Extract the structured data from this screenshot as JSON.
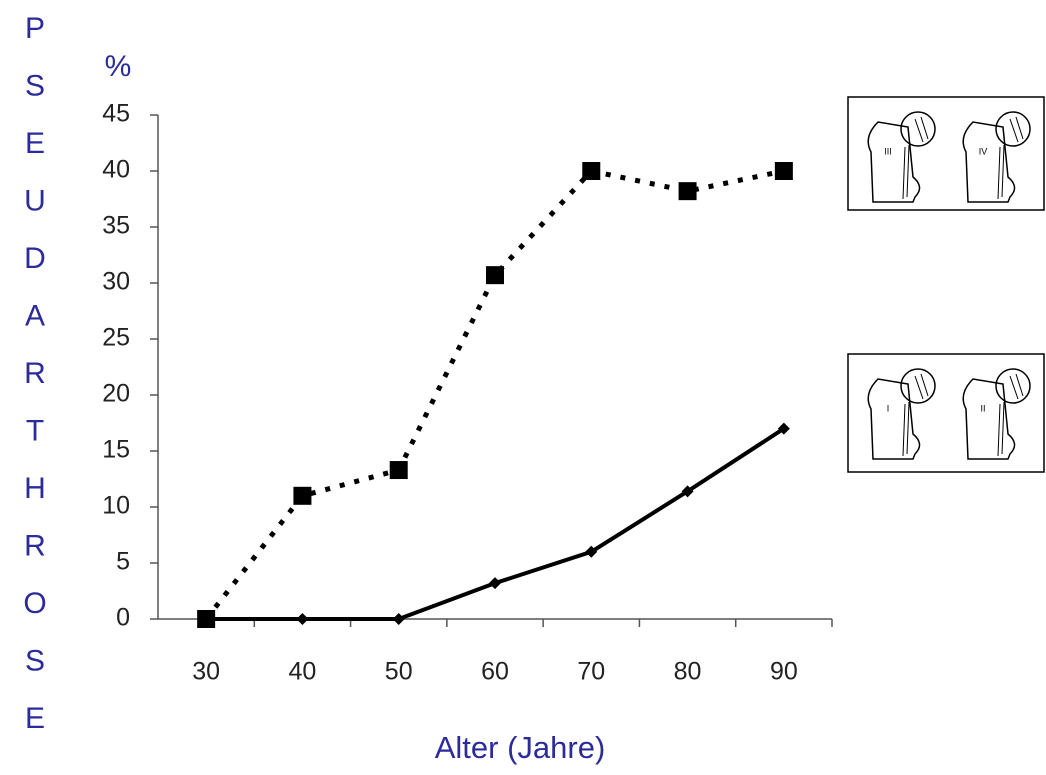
{
  "chart_data": {
    "type": "line",
    "ylabel": "PSEUDARTHROSE",
    "yunit": "%",
    "xlabel": "Alter (Jahre)",
    "categories": [
      "30",
      "40",
      "50",
      "60",
      "70",
      "80",
      "90"
    ],
    "series": [
      {
        "color": "#000000",
        "marker": "square",
        "dash": true,
        "legend_labels": [
          "III",
          "IV"
        ],
        "values": [
          0,
          11,
          13.3,
          30.7,
          40,
          38.2,
          40
        ]
      },
      {
        "color": "#000000",
        "marker": "diamond",
        "dash": false,
        "legend_labels": [
          "I",
          "II"
        ],
        "values": [
          0,
          0,
          0,
          3.2,
          6,
          11.4,
          17
        ]
      }
    ],
    "ylim": [
      0,
      45
    ],
    "yticks": [
      0,
      5,
      10,
      15,
      20,
      25,
      30,
      35,
      40,
      45
    ],
    "grid": false
  }
}
